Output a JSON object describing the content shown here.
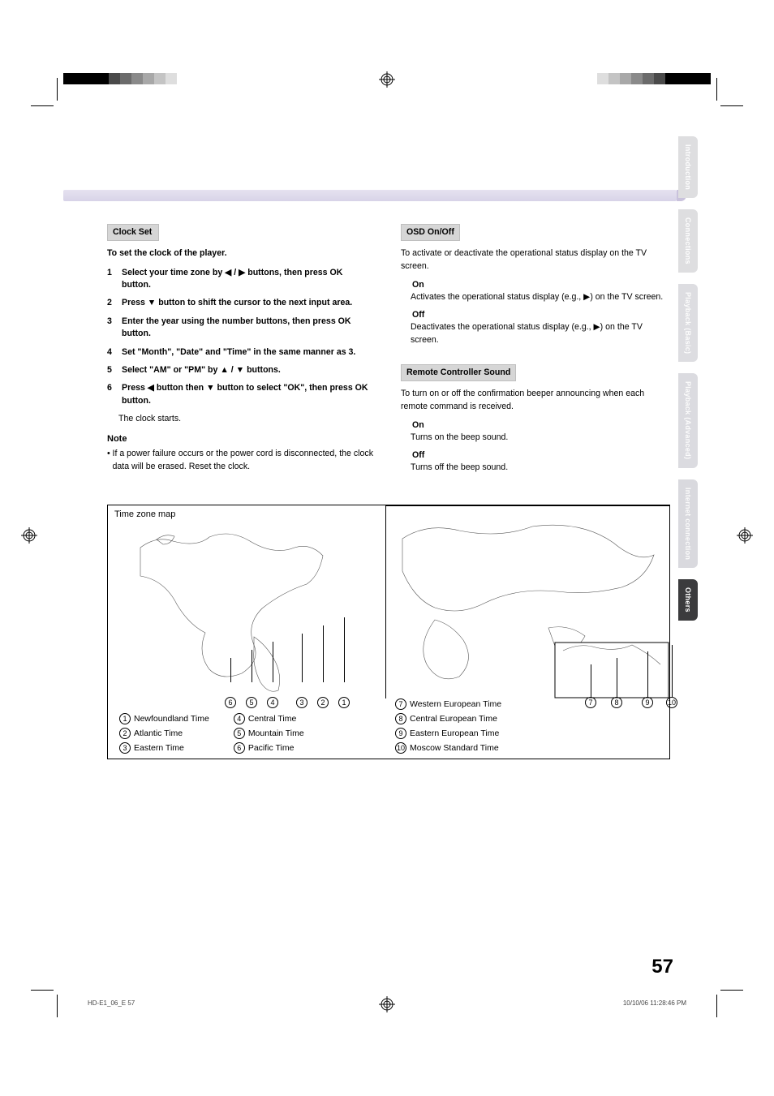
{
  "page": {
    "number": "57",
    "footer_left": "HD-E1_06_E   57",
    "footer_right": "10/10/06   11:28:46 PM"
  },
  "print_marks": {
    "left_colors": [
      "#000000",
      "#000000",
      "#000000",
      "#000000",
      "#4a4a4a",
      "#6b6b6b",
      "#8a8a8a",
      "#a8a8a8",
      "#c4c4c4",
      "#dedede"
    ],
    "right_colors": [
      "#dedede",
      "#c4c4c4",
      "#a8a8a8",
      "#8a8a8a",
      "#6b6b6b",
      "#4a4a4a",
      "#000000",
      "#000000",
      "#000000",
      "#000000"
    ]
  },
  "tabs": [
    {
      "label": "Introduction",
      "bg": "#dedee0",
      "fg": "#fefefe"
    },
    {
      "label": "Connections",
      "bg": "#dedee0",
      "fg": "#fefefe"
    },
    {
      "label": "Playback (Basic)",
      "bg": "#dddde1",
      "fg": "#fcfcfc"
    },
    {
      "label": "Playback (Advanced)",
      "bg": "#dbdbe0",
      "fg": "#fcfcfc"
    },
    {
      "label": "Internet connection",
      "bg": "#d9d9de",
      "fg": "#fbfbfb"
    },
    {
      "label": "Others",
      "bg": "#3b3b3d",
      "fg": "#ffffff"
    }
  ],
  "left_col": {
    "setting_title": "Clock Set",
    "intro": "To set the clock of the player.",
    "steps": [
      {
        "n": "1",
        "t": "Select your time zone by ◀ / ▶ buttons, then press OK button."
      },
      {
        "n": "2",
        "t": "Press ▼ button to shift the cursor to the next input area."
      },
      {
        "n": "3",
        "t": "Enter the year using the number buttons, then press OK button."
      },
      {
        "n": "4",
        "t": "Set \"Month\", \"Date\" and \"Time\" in the same manner as 3."
      },
      {
        "n": "5",
        "t": "Select \"AM\" or \"PM\" by ▲ / ▼ buttons."
      },
      {
        "n": "6",
        "t": "Press ◀ button then ▼ button to select \"OK\", then press OK button."
      }
    ],
    "after_steps": "The clock starts.",
    "note_title": "Note",
    "note_body": "If a power failure occurs or the power cord is disconnected, the clock data will be erased. Reset the clock."
  },
  "right_col": {
    "osd_title": "OSD On/Off",
    "osd_intro": "To activate or deactivate the operational status display on the TV screen.",
    "osd_on_h": "On",
    "osd_on_p": "Activates the operational status display (e.g., ▶) on the TV screen.",
    "osd_off_h": "Off",
    "osd_off_p": "Deactivates the operational status display (e.g., ▶) on the TV screen.",
    "rcs_title": "Remote Controller Sound",
    "rcs_intro": "To turn on or off the confirmation beeper announcing when each remote command is received.",
    "rcs_on_h": "On",
    "rcs_on_p": "Turns on the beep sound.",
    "rcs_off_h": "Off",
    "rcs_off_p": "Turns off the beep sound."
  },
  "timezone": {
    "label": "Time zone map",
    "left_nums": [
      "6",
      "5",
      "4",
      "3",
      "2",
      "1"
    ],
    "right_nums": [
      "7",
      "8",
      "9",
      "10"
    ],
    "left_legend_a": [
      {
        "n": "1",
        "t": "Newfoundland Time"
      },
      {
        "n": "2",
        "t": "Atlantic Time"
      },
      {
        "n": "3",
        "t": "Eastern Time"
      }
    ],
    "left_legend_b": [
      {
        "n": "4",
        "t": "Central Time"
      },
      {
        "n": "5",
        "t": "Mountain Time"
      },
      {
        "n": "6",
        "t": "Pacific Time"
      }
    ],
    "right_legend": [
      {
        "n": "7",
        "t": "Western European Time"
      },
      {
        "n": "8",
        "t": "Central European Time"
      },
      {
        "n": "9",
        "t": "Eastern European Time"
      },
      {
        "n": "10",
        "t": "Moscow Standard Time"
      }
    ],
    "left_line_x": [
      277,
      302,
      328,
      376,
      402,
      428
    ],
    "right_line_x": [
      655,
      686,
      730,
      760
    ]
  }
}
